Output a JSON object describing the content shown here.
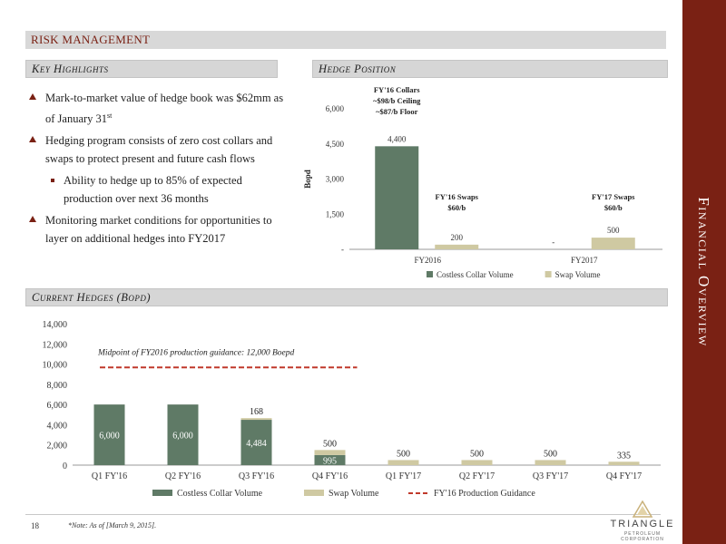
{
  "side_title": "Financial Overview",
  "header": {
    "title": "RISK MANAGEMENT"
  },
  "sections": {
    "key_highlights": "Key Highlights",
    "hedge_position": "Hedge Position",
    "current_hedges": "Current Hedges (Bopd)"
  },
  "highlights": {
    "item1_a": "Mark-to-market value of hedge book was $62mm as of January 31",
    "item1_sup": "st",
    "item2": "Hedging program consists of zero cost collars and swaps to protect present and future cash flows",
    "sub1": "Ability to hedge up to 85% of expected production over next 36 months",
    "item3": "Monitoring market conditions for opportunities to layer on additional hedges into FY2017"
  },
  "colors": {
    "accent": "#7a2114",
    "collar": "#5f7a66",
    "swap": "#cfc9a2",
    "guidance": "#c0392b"
  },
  "chart_data": [
    {
      "type": "bar",
      "name": "hedge-position",
      "categories": [
        "FY2016",
        "FY2017"
      ],
      "series": [
        {
          "name": "Costless Collar Volume",
          "values": [
            4400,
            0
          ],
          "labels": [
            "4,400",
            "-"
          ]
        },
        {
          "name": "Swap Volume",
          "values": [
            200,
            500
          ],
          "labels": [
            "200",
            "500"
          ]
        }
      ],
      "ylabel": "Bopd",
      "ylim": [
        0,
        6000
      ],
      "yticks": [
        0,
        1500,
        3000,
        4500,
        6000
      ],
      "ytick_labels": [
        "-",
        "1,500",
        "3,000",
        "4,500",
        "6,000"
      ],
      "legend": "bottom",
      "annotations": {
        "collars_title": "FY'16 Collars",
        "collars_ceiling": "~$98/b Ceiling",
        "collars_floor": "~$87/b Floor",
        "swaps16_title": "FY'16 Swaps",
        "swaps16_price": "$60/b",
        "swaps17_title": "FY'17 Swaps",
        "swaps17_price": "$60/b"
      }
    },
    {
      "type": "bar",
      "name": "current-hedges",
      "stacked": true,
      "categories": [
        "Q1 FY'16",
        "Q2 FY'16",
        "Q3 FY'16",
        "Q4 FY'16",
        "Q1 FY'17",
        "Q2 FY'17",
        "Q3 FY'17",
        "Q4 FY'17"
      ],
      "series": [
        {
          "name": "Costless Collar Volume",
          "values": [
            6000,
            6000,
            4484,
            995,
            0,
            0,
            0,
            0
          ],
          "labels": [
            "6,000",
            "6,000",
            "4,484",
            "995",
            "",
            "",
            "",
            ""
          ]
        },
        {
          "name": "Swap Volume",
          "values": [
            0,
            0,
            168,
            500,
            500,
            500,
            500,
            335
          ],
          "labels": [
            "",
            "",
            "168",
            "500",
            "500",
            "500",
            "500",
            "335"
          ]
        },
        {
          "name": "FY'16 Production Guidance",
          "line_value": 12000
        }
      ],
      "ylim": [
        0,
        14000
      ],
      "yticks": [
        0,
        2000,
        4000,
        6000,
        8000,
        10000,
        12000,
        14000
      ],
      "ytick_labels": [
        "0",
        "2,000",
        "4,000",
        "6,000",
        "8,000",
        "10,000",
        "12,000",
        "14,000"
      ],
      "legend": "bottom",
      "annotation": "Midpoint of FY2016 production guidance: 12,000 Boepd"
    }
  ],
  "footer": {
    "page_number": "18",
    "note": "*Note: As of [March 9, 2015]."
  },
  "logo": {
    "name": "TRIANGLE",
    "sub": "PETROLEUM CORPORATION"
  }
}
